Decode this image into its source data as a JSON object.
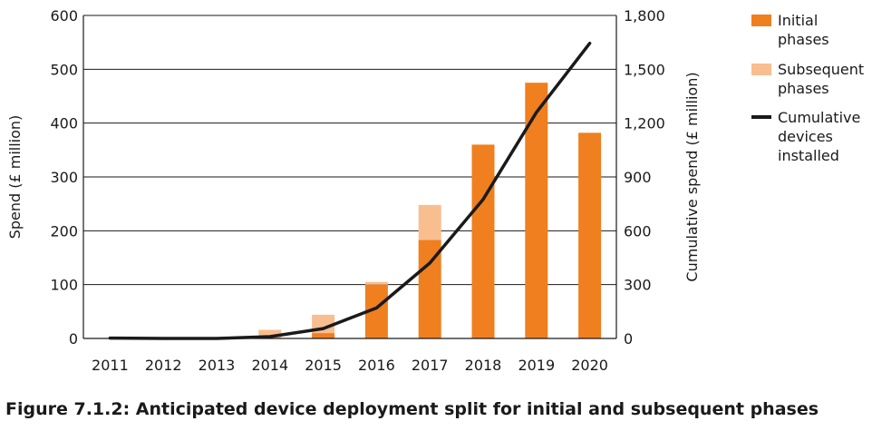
{
  "caption": "Figure 7.1.2: Anticipated device deployment split for initial and subsequent phases",
  "chart_data": {
    "type": "bar",
    "title": "Figure 7.1.2: Anticipated device deployment split for initial and subsequent phases",
    "categories": [
      "2011",
      "2012",
      "2013",
      "2014",
      "2015",
      "2016",
      "2017",
      "2018",
      "2019",
      "2020"
    ],
    "series": [
      {
        "name": "Initial phases",
        "kind": "bar",
        "axis": "left",
        "color": "#f07f1f",
        "values": [
          0,
          0,
          0,
          0,
          10,
          100,
          183,
          360,
          475,
          382
        ]
      },
      {
        "name": "Subsequent phases",
        "kind": "bar",
        "axis": "left",
        "color": "#f9be8f",
        "values": [
          0,
          0,
          0,
          16,
          34,
          5,
          65,
          0,
          0,
          0
        ]
      },
      {
        "name": "Cumulative devices installed",
        "kind": "line",
        "axis": "right",
        "color": "#1a1a1a",
        "values": [
          2,
          0,
          0,
          10,
          55,
          170,
          420,
          775,
          1260,
          1645
        ]
      }
    ],
    "legend_lines": [
      [
        "Initial",
        "phases"
      ],
      [
        "Subsequent",
        "phases"
      ],
      [
        "Cumulative",
        "devices",
        "installed"
      ]
    ],
    "ylabel": "Spend (£ million)",
    "y2label": "Cumulative spend (£ million)",
    "ylim": [
      0,
      600
    ],
    "y2lim": [
      0,
      1800
    ],
    "yticks": [
      "0",
      "100",
      "200",
      "300",
      "400",
      "500",
      "600"
    ],
    "y2ticks": [
      "0",
      "300",
      "600",
      "900",
      "1,200",
      "1,500",
      "1,800"
    ],
    "grid": true,
    "stacked": true,
    "legend_position": "right"
  }
}
